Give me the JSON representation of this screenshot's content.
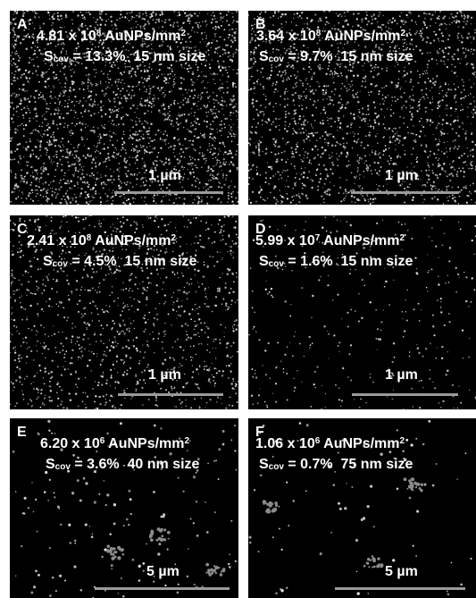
{
  "figure": {
    "background_color": "#000000",
    "text_color": "#ffffff",
    "scalebar_color": "#9a9a9a",
    "panels": [
      {
        "letter": "A",
        "density_mantissa": "4.81 x 10",
        "density_exp": "8",
        "density_unit": " AuNPs/mm",
        "unit_exp": "2",
        "s_label": "S",
        "s_sub": "cov",
        "coverage": " = 13.3%",
        "size": "15 nm size",
        "scalebar": "1 µm",
        "particle_density": 1.0
      },
      {
        "letter": "B",
        "density_mantissa": "3.64 x 10",
        "density_exp": "8",
        "density_unit": " AuNPs/mm",
        "unit_exp": "2",
        "s_label": "S",
        "s_sub": "cov",
        "coverage": " = 9.7%",
        "size": "15 nm size",
        "scalebar": "1 µm",
        "particle_density": 0.76
      },
      {
        "letter": "C",
        "density_mantissa": "2.41 x 10",
        "density_exp": "8",
        "density_unit": " AuNPs/mm",
        "unit_exp": "2",
        "s_label": "S",
        "s_sub": "cov",
        "coverage": " = 4.5%",
        "size": "15 nm size",
        "scalebar": "1 µm",
        "particle_density": 0.5
      },
      {
        "letter": "D",
        "density_mantissa": "5.99 x 10",
        "density_exp": "7",
        "density_unit": " AuNPs/mm",
        "unit_exp": "2",
        "s_label": "S",
        "s_sub": "cov",
        "coverage": " = 1.6%",
        "size": "15 nm size",
        "scalebar": "1 µm",
        "particle_density": 0.13
      },
      {
        "letter": "E",
        "density_mantissa": "6.20 x 10",
        "density_exp": "6",
        "density_unit": " AuNPs/mm",
        "unit_exp": "2",
        "s_label": "S",
        "s_sub": "cov",
        "coverage": " = 3.6%",
        "size": "40 nm size",
        "scalebar": "5 µm",
        "particle_density": 0.06
      },
      {
        "letter": "F",
        "density_mantissa": "1.06 x 10",
        "density_exp": "6",
        "density_unit": " AuNPs/mm",
        "unit_exp": "2",
        "s_label": "S",
        "s_sub": "cov",
        "coverage": " = 0.7%",
        "size": "75 nm size",
        "scalebar": "5 µm",
        "particle_density": 0.03
      }
    ]
  }
}
